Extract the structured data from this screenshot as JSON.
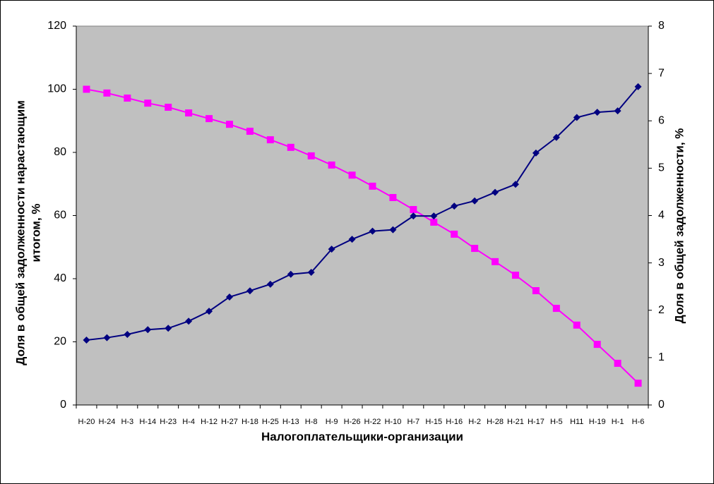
{
  "chart_data": {
    "type": "line",
    "xlabel": "Налогоплательщики-организации",
    "ylabel": [
      "Доля в общей задолженности нарастающим",
      "итогом, %"
    ],
    "y2label": "Доля в общей задолженности, %",
    "categories": [
      "Н-20",
      "Н-24",
      "Н-3",
      "Н-14",
      "Н-23",
      "Н-4",
      "Н-12",
      "Н-27",
      "Н-18",
      "Н-25",
      "Н-13",
      "Н-8",
      "Н-9",
      "Н-26",
      "Н-22",
      "Н-10",
      "Н-7",
      "Н-15",
      "Н-16",
      "Н-2",
      "Н-28",
      "Н-21",
      "Н-17",
      "Н-5",
      "Н11",
      "Н-19",
      "Н-1",
      "Н-6"
    ],
    "series": [
      {
        "color": "#ff00ff",
        "marker": "square",
        "axis": "y",
        "values": [
          100,
          98.8,
          97.2,
          95.6,
          94.3,
          92.5,
          90.7,
          88.9,
          86.7,
          84,
          81.6,
          78.9,
          76,
          72.8,
          69.3,
          65.7,
          61.9,
          57.9,
          54.1,
          49.6,
          45.4,
          41.1,
          36.2,
          30.6,
          25.3,
          19.2,
          13.2,
          6.9
        ]
      },
      {
        "color": "#000080",
        "marker": "diamond",
        "axis": "y2",
        "values": [
          1.37,
          1.42,
          1.49,
          1.59,
          1.62,
          1.77,
          1.98,
          2.28,
          2.41,
          2.55,
          2.76,
          2.8,
          3.29,
          3.5,
          3.67,
          3.7,
          3.99,
          3.99,
          4.2,
          4.31,
          4.49,
          4.66,
          5.32,
          5.65,
          6.07,
          6.18,
          6.21,
          6.72
        ]
      }
    ],
    "ylim": [
      0,
      120
    ],
    "yticks": [
      0,
      20,
      40,
      60,
      80,
      100,
      120
    ],
    "y2lim": [
      0,
      8
    ],
    "y2ticks": [
      0,
      1,
      2,
      3,
      4,
      5,
      6,
      7,
      8
    ],
    "plot_background": "#c0c0c0"
  }
}
